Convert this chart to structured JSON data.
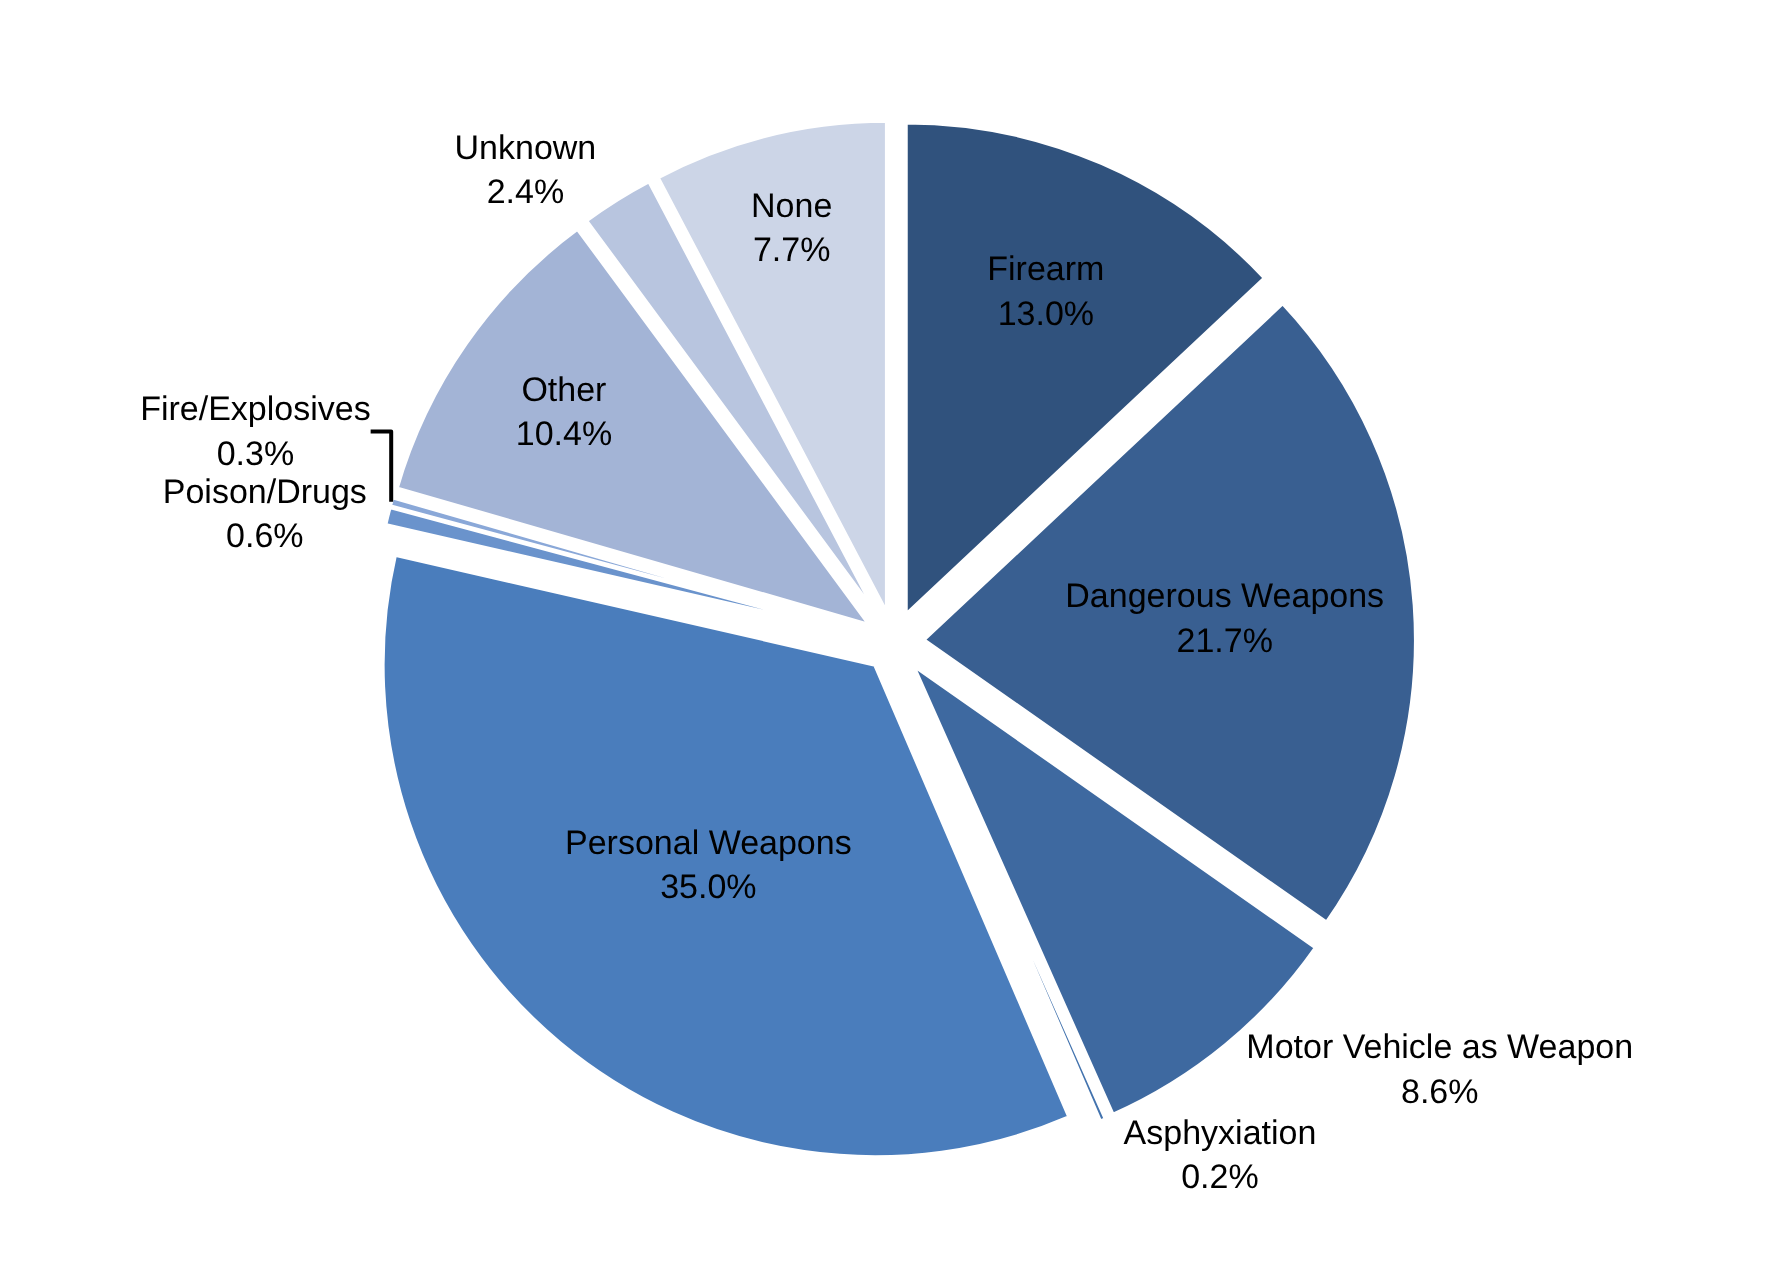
{
  "chart_data": {
    "type": "pie",
    "categories": [
      "Firearm",
      "Dangerous Weapons",
      "Motor Vehicle as Weapon",
      "Asphyxiation",
      "Personal Weapons",
      "Poison/Drugs",
      "Fire/Explosives",
      "Other",
      "Unknown",
      "None"
    ],
    "values": [
      13.0,
      21.7,
      8.6,
      0.2,
      35.0,
      0.6,
      0.3,
      10.4,
      2.4,
      7.7
    ],
    "value_labels": [
      "13.0%",
      "21.7%",
      "8.6%",
      "0.2%",
      "35.0%",
      "0.6%",
      "0.3%",
      "10.4%",
      "2.4%",
      "7.7%"
    ],
    "colors": [
      "#30527d",
      "#395f91",
      "#3e69a0",
      "#4373ae",
      "#4a7dbc",
      "#6a93cc",
      "#8aa8d8",
      "#a3b4d6",
      "#b8c5df",
      "#ccd5e7"
    ],
    "legend": false
  }
}
